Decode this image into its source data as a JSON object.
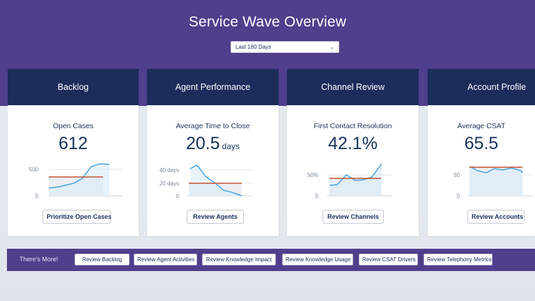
{
  "header": {
    "title": "Service Wave Overview",
    "date_range": "Last 180 Days"
  },
  "colors": {
    "header_bg": "#4f3f8c",
    "card_head_bg": "#1c2c5b",
    "line": "#4aa3df",
    "target": "#c2502e"
  },
  "cards": [
    {
      "title": "Backlog",
      "metric_label": "Open Cases",
      "metric_value": "612",
      "metric_unit": "",
      "button": "Prioritize Open Cases",
      "y_ticks": [
        "500",
        "0"
      ]
    },
    {
      "title": "Agent Performance",
      "metric_label": "Average Time to Close",
      "metric_value": "20.5",
      "metric_unit": "days",
      "button": "Review Agents",
      "y_ticks": [
        "40 days",
        "20 days",
        "0"
      ]
    },
    {
      "title": "Channel Review",
      "metric_label": "First Contact Resolution",
      "metric_value": "42.1%",
      "metric_unit": "",
      "button": "Review Channels",
      "y_ticks": [
        "50%",
        "0"
      ]
    },
    {
      "title": "Account Profile",
      "metric_label": "Average CSAT",
      "metric_value": "65.5",
      "metric_unit": "",
      "button": "Review Accounts",
      "y_ticks": [
        "50",
        "0"
      ]
    }
  ],
  "more_bar": {
    "label": "There's More!",
    "buttons": [
      "Review Backlog",
      "Review Agent Activities",
      "Review Knowledge Impact",
      "Review Knowledge Usage",
      "Review CSAT Drivers",
      "Review Telephony Metrics"
    ]
  }
}
